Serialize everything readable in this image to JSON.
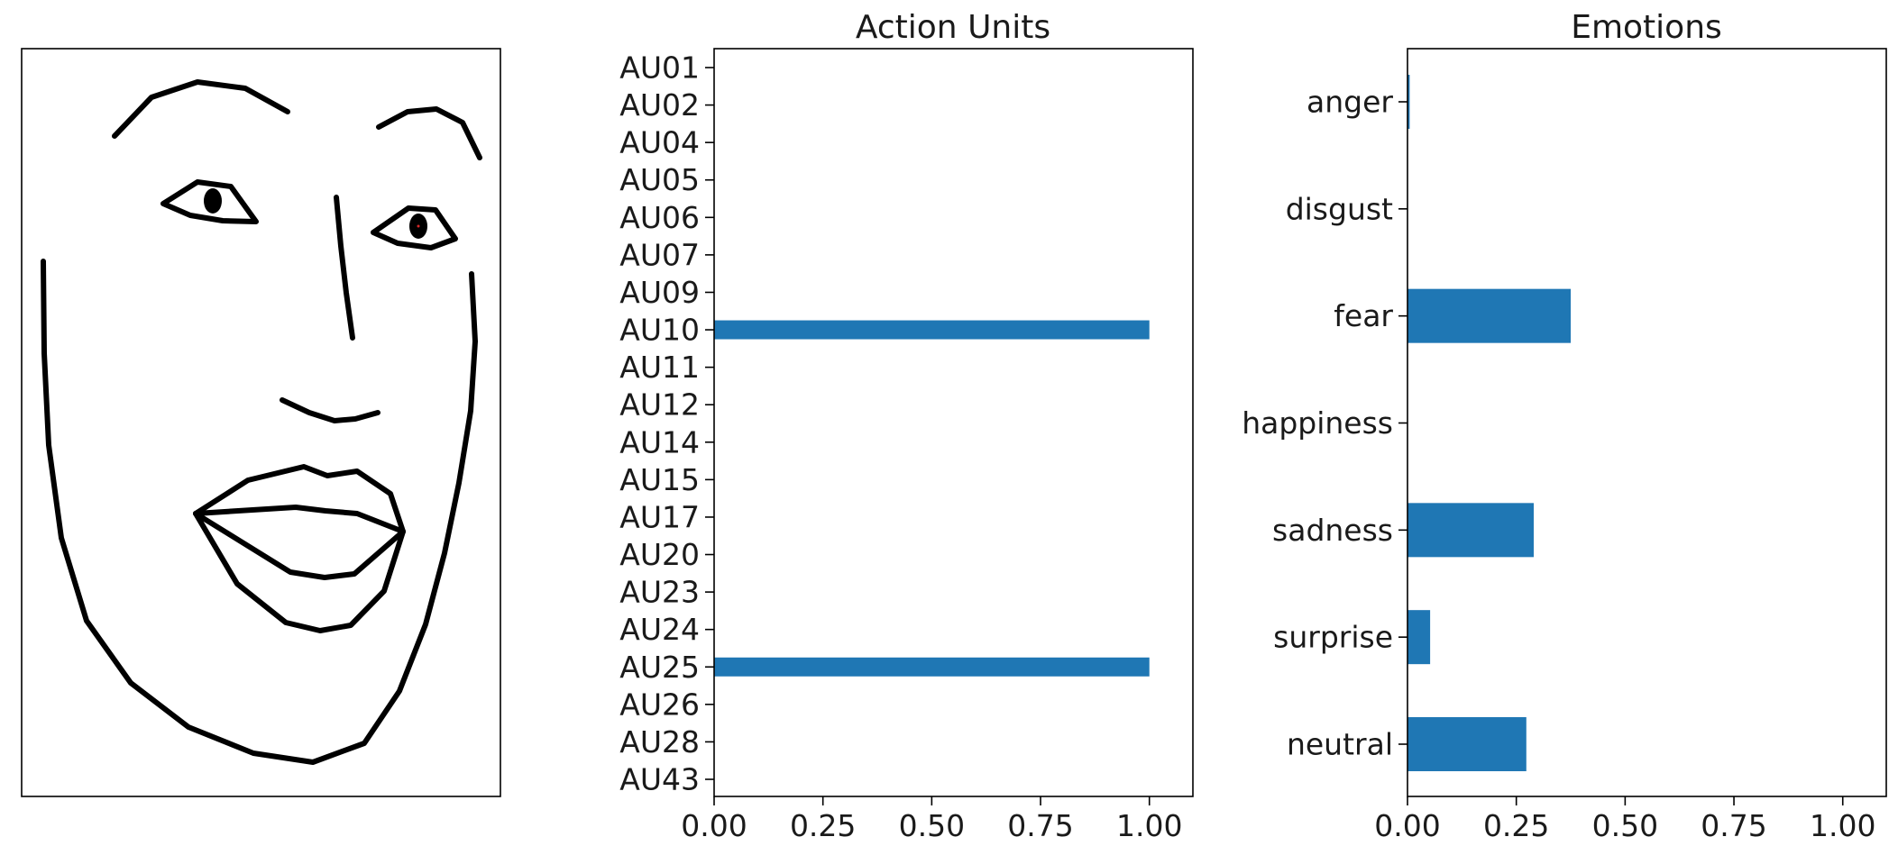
{
  "bar_color": "#1f77b4",
  "chart_data": [
    {
      "type": "bar",
      "orientation": "horizontal",
      "title": "Action Units",
      "categories": [
        "AU01",
        "AU02",
        "AU04",
        "AU05",
        "AU06",
        "AU07",
        "AU09",
        "AU10",
        "AU11",
        "AU12",
        "AU14",
        "AU15",
        "AU17",
        "AU20",
        "AU23",
        "AU24",
        "AU25",
        "AU26",
        "AU28",
        "AU43"
      ],
      "values": [
        0,
        0,
        0,
        0,
        0,
        0,
        0,
        1.0,
        0,
        0,
        0,
        0,
        0,
        0,
        0,
        0,
        1.0,
        0,
        0,
        0
      ],
      "xlim": [
        0,
        1.1
      ],
      "xticks": [
        0,
        0.25,
        0.5,
        0.75,
        1.0
      ],
      "xtick_labels": [
        "0.00",
        "0.25",
        "0.50",
        "0.75",
        "1.00"
      ],
      "xlabel": "",
      "ylabel": "",
      "grid": false,
      "legend": "none"
    },
    {
      "type": "bar",
      "orientation": "horizontal",
      "title": "Emotions",
      "categories": [
        "anger",
        "disgust",
        "fear",
        "happiness",
        "sadness",
        "surprise",
        "neutral"
      ],
      "values": [
        0.005,
        0.0,
        0.375,
        0.0,
        0.29,
        0.052,
        0.273
      ],
      "xlim": [
        0,
        1.1
      ],
      "xticks": [
        0,
        0.25,
        0.5,
        0.75,
        1.0
      ],
      "xtick_labels": [
        "0.00",
        "0.25",
        "0.50",
        "0.75",
        "1.00"
      ],
      "xlabel": "",
      "ylabel": "",
      "grid": false,
      "legend": "none"
    }
  ]
}
